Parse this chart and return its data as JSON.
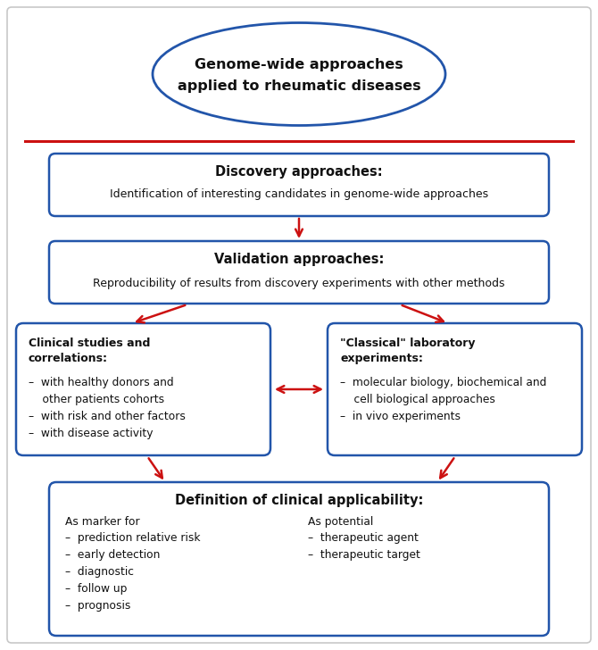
{
  "background_color": "#ffffff",
  "outer_border_color": "#c8c8c8",
  "box_border_color": "#2255aa",
  "box_fill_color": "#ffffff",
  "arrow_color": "#cc1111",
  "red_line_color": "#cc1111",
  "ellipse_text_line1": "Genome-wide approaches",
  "ellipse_text_line2": "applied to rheumatic diseases",
  "box1_title": "Discovery approaches:",
  "box1_body": "Identification of interesting candidates in genome-wide approaches",
  "box2_title": "Validation approaches:",
  "box2_body": "Reproducibility of results from discovery experiments with other methods",
  "box3_title": "Clinical studies and\ncorrelations:",
  "box3_body": "–  with healthy donors and\n    other patients cohorts\n–  with risk and other factors\n–  with disease activity",
  "box4_title": "\"Classical\" laboratory\nexperiments:",
  "box4_body": "–  molecular biology, biochemical and\n    cell biological approaches\n–  in vivo experiments",
  "box5_title": "Definition of clinical applicability:",
  "box5_col1_header": "As marker for",
  "box5_col1_body": "–  prediction relative risk\n–  early detection\n–  diagnostic\n–  follow up\n–  prognosis",
  "box5_col2_header": "As potential",
  "box5_col2_body": "–  therapeutic agent\n–  therapeutic target",
  "title_fontsize": 10.5,
  "body_fontsize": 9.0,
  "small_fontsize": 8.8
}
